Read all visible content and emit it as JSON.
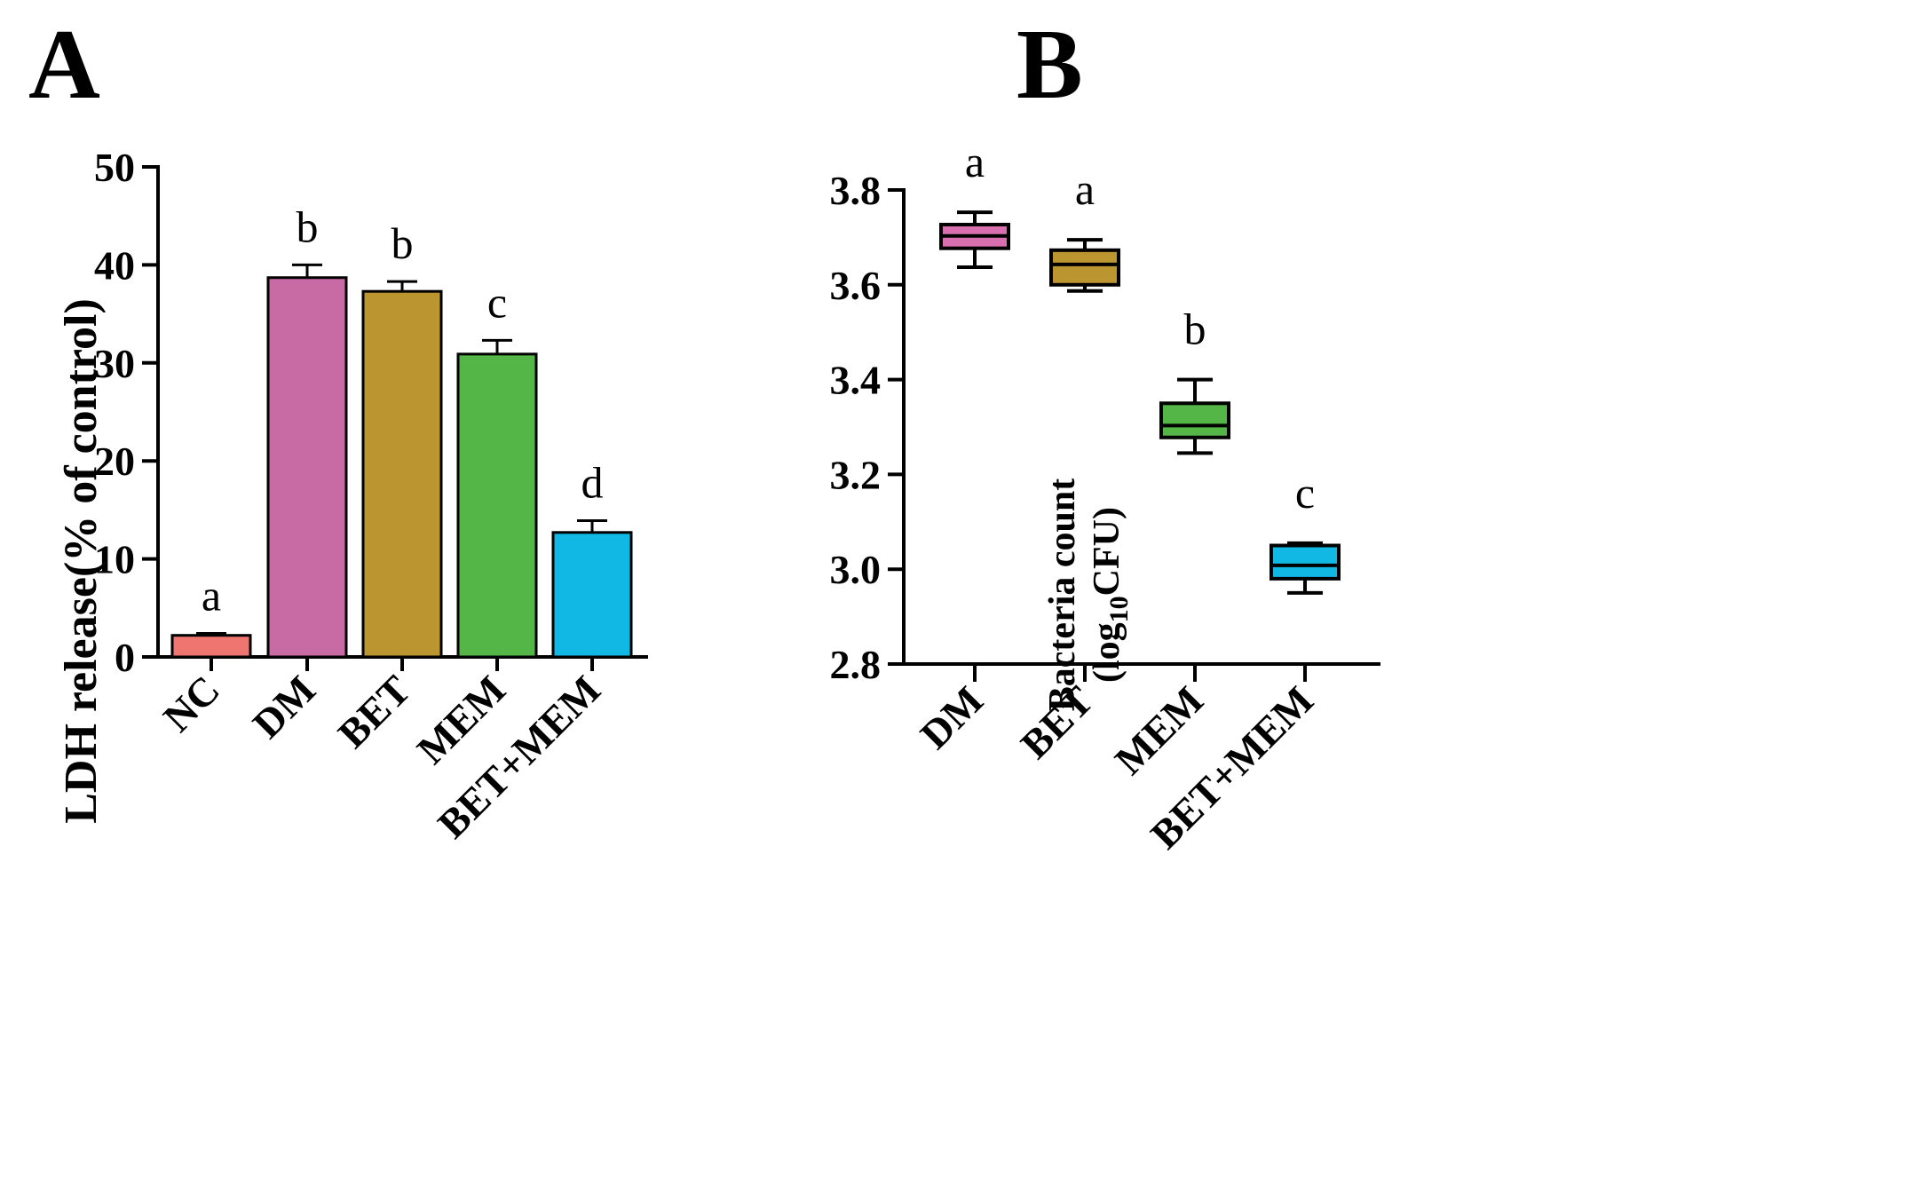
{
  "chart_data": [
    {
      "panel": "A",
      "type": "bar",
      "ylabel": "LDH release(% of control)",
      "ylim": [
        0,
        50
      ],
      "yticks": [
        "0",
        "10",
        "20",
        "30",
        "40",
        "50"
      ],
      "ytick_values": [
        0,
        10,
        20,
        30,
        40,
        50
      ],
      "categories": [
        "NC",
        "DM",
        "BET",
        "MEM",
        "BET+MEM"
      ],
      "values": [
        2.2,
        38.7,
        37.3,
        30.9,
        12.7
      ],
      "errors": [
        0.2,
        1.3,
        1.0,
        1.4,
        1.2
      ],
      "colors": [
        "#ef7670",
        "#c86aa3",
        "#bb9530",
        "#55b648",
        "#12b8e4"
      ],
      "significance": [
        "a",
        "b",
        "b",
        "c",
        "d"
      ]
    },
    {
      "panel": "B",
      "type": "box",
      "ylabel_main": "Bacteria count",
      "ylabel_sub_pre": "(log",
      "ylabel_sub_subscript": "10",
      "ylabel_sub_post": "CFU)",
      "ylim": [
        2.8,
        3.8
      ],
      "yticks": [
        "2.8",
        "3.0",
        "3.2",
        "3.4",
        "3.6",
        "3.8"
      ],
      "ytick_values": [
        2.8,
        3.0,
        3.2,
        3.4,
        3.6,
        3.8
      ],
      "categories": [
        "DM",
        "BET",
        "MEM",
        "BET+MEM"
      ],
      "boxes": [
        {
          "min": 3.637,
          "q1": 3.677,
          "median": 3.703,
          "q3": 3.727,
          "max": 3.753
        },
        {
          "min": 3.587,
          "q1": 3.6,
          "median": 3.643,
          "q3": 3.673,
          "max": 3.695
        },
        {
          "min": 3.245,
          "q1": 3.278,
          "median": 3.303,
          "q3": 3.35,
          "max": 3.4
        },
        {
          "min": 2.95,
          "q1": 2.98,
          "median": 3.008,
          "q3": 3.05,
          "max": 3.055
        }
      ],
      "colors": [
        "#d86fae",
        "#bb9530",
        "#55b648",
        "#12b8e4"
      ],
      "significance": [
        "a",
        "a",
        "b",
        "c"
      ]
    }
  ],
  "panel_labels": {
    "a": "A",
    "b": "B"
  }
}
